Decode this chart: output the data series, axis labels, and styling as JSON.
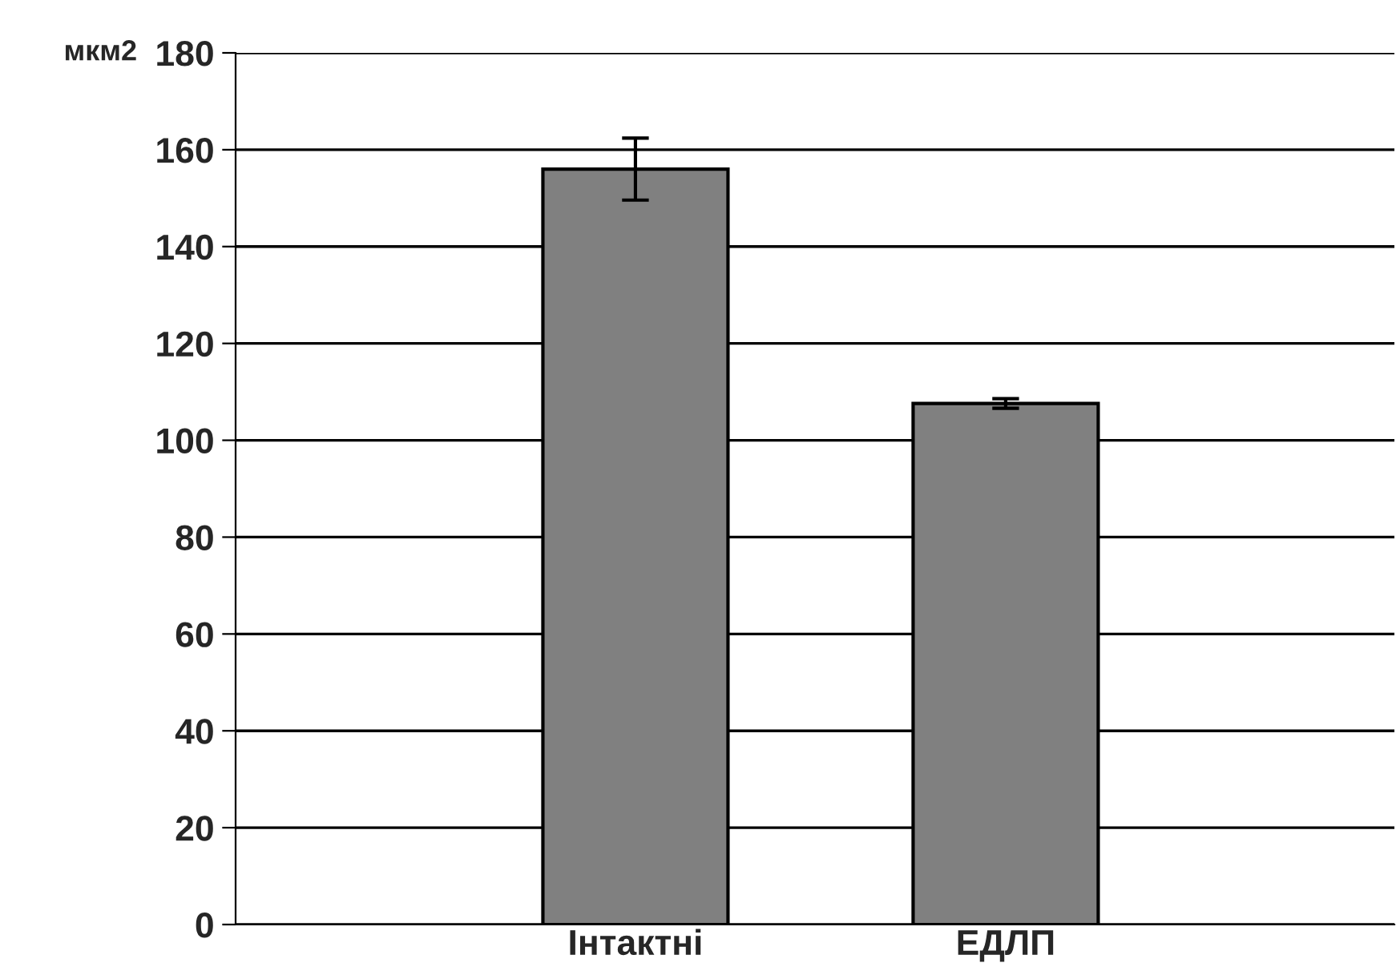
{
  "chart_data": {
    "type": "bar",
    "ylabel": "мкм2",
    "categories": [
      "Інтактні",
      "ЕДЛП"
    ],
    "values": [
      156,
      107.6
    ],
    "errors": [
      6.4,
      1
    ],
    "color": "#808080",
    "ylim": [
      0,
      180
    ],
    "yticks": [
      0,
      20,
      40,
      60,
      80,
      100,
      120,
      140,
      160,
      180
    ],
    "grid": "y",
    "legend": false
  }
}
